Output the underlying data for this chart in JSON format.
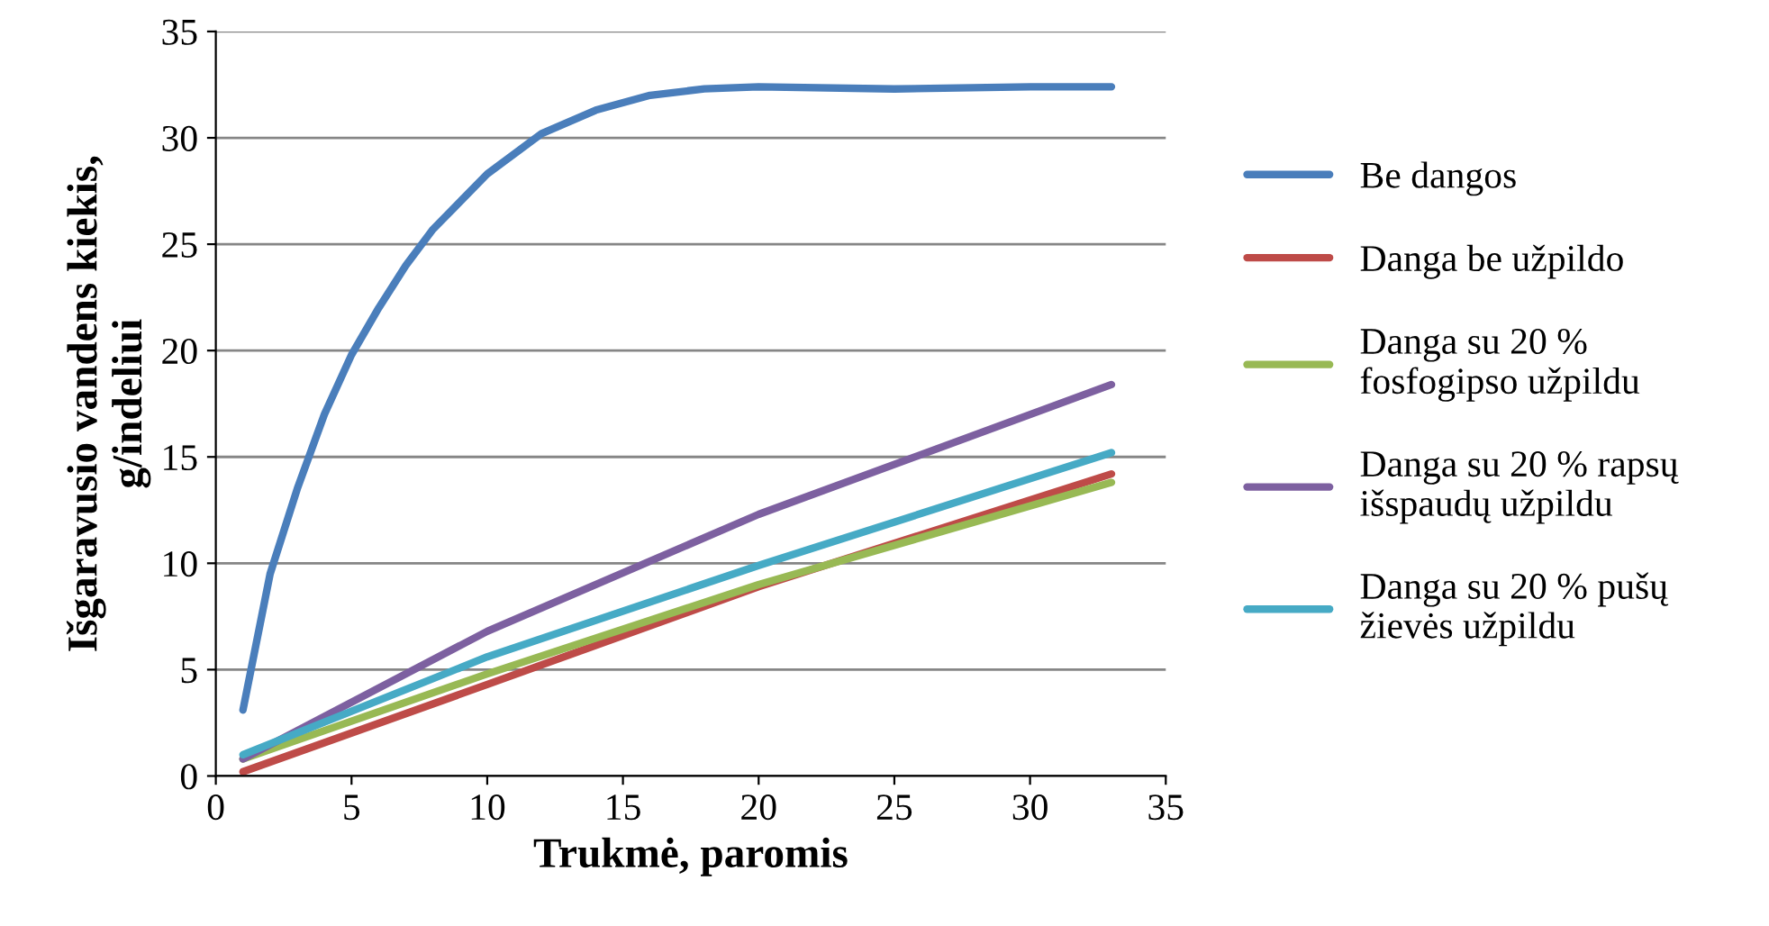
{
  "chart_data": {
    "type": "line",
    "xlabel": "Trukmė, paromis",
    "ylabel": "Išgaravusio vandens kiekis,\ng/indeliui",
    "xlim": [
      0,
      35
    ],
    "ylim": [
      0,
      35
    ],
    "xticks": [
      0,
      5,
      10,
      15,
      20,
      25,
      30,
      35
    ],
    "yticks": [
      0,
      5,
      10,
      15,
      20,
      25,
      30,
      35
    ],
    "grid": "y",
    "legend": "right",
    "marker": "none",
    "line_style": "solid",
    "series": [
      {
        "name": "Be dangos",
        "color": "#4a7ebb",
        "x": [
          1,
          2,
          3,
          4,
          5,
          6,
          7,
          8,
          10,
          12,
          14,
          16,
          18,
          20,
          25,
          30,
          33
        ],
        "values": [
          3.1,
          9.5,
          13.5,
          17,
          19.8,
          22,
          24,
          25.7,
          28.3,
          30.2,
          31.3,
          32,
          32.3,
          32.4,
          32.3,
          32.4,
          32.4
        ]
      },
      {
        "name": "Danga be užpildo",
        "color": "#be4b48",
        "x": [
          1,
          10,
          20,
          33
        ],
        "values": [
          0.2,
          4.3,
          8.9,
          14.2
        ]
      },
      {
        "name": "Danga su 20 %\nfosfogipso užpildu",
        "color": "#98b954",
        "x": [
          1,
          10,
          20,
          33
        ],
        "values": [
          0.8,
          4.8,
          9.0,
          13.8
        ]
      },
      {
        "name": "Danga su 20 % rapsų\nišspaudų užpildu",
        "color": "#7d60a0",
        "x": [
          1,
          10,
          20,
          33
        ],
        "values": [
          0.8,
          6.8,
          12.3,
          18.4
        ]
      },
      {
        "name": "Danga su 20 % pušų\nžievės užpildu",
        "color": "#46aac5",
        "x": [
          1,
          10,
          20,
          33
        ],
        "values": [
          1.0,
          5.6,
          9.9,
          15.2
        ]
      }
    ]
  }
}
